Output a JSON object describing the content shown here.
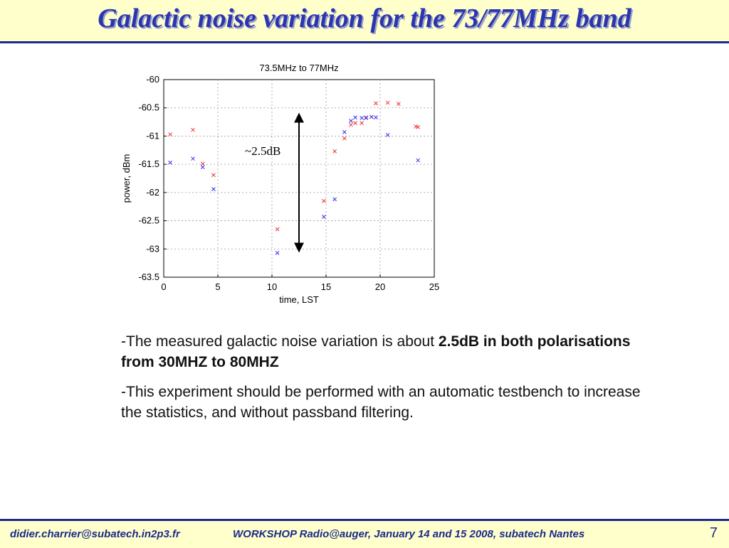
{
  "slide": {
    "title": "Galactic noise variation for the 73/77MHz band"
  },
  "body": {
    "p1_normal": "-The measured galactic noise variation is about ",
    "p1_bold": "2.5dB in both polarisations from 30MHZ to  80MHZ",
    "p2": "-This experiment should be performed with an automatic testbench to increase the statistics, and without passband filtering."
  },
  "footer": {
    "email": "didier.charrier@subatech.in2p3.fr",
    "workshop": "WORKSHOP Radio@auger, January 14 and 15 2008, subatech Nantes",
    "page": "7"
  },
  "colors": {
    "title": "#2b35b0",
    "title_bg": "#ffffcc",
    "rule": "#1a2a8a",
    "series_red": "#ee3333",
    "series_blue": "#3333ee"
  },
  "chart_data": {
    "type": "scatter",
    "title": "73.5MHz to 77MHz",
    "xlabel": "time, LST",
    "ylabel": "power, dBm",
    "xlim": [
      0,
      25
    ],
    "ylim": [
      -63.5,
      -60
    ],
    "xticks": [
      "0",
      "5",
      "10",
      "15",
      "20",
      "25"
    ],
    "yticks": [
      "-60",
      "-60.5",
      "-61",
      "-61.5",
      "-62",
      "-62.5",
      "-63",
      "-63.5"
    ],
    "grid": true,
    "marker": "x",
    "annotation": "~2.5dB",
    "series": [
      {
        "color": "#ee3333",
        "points": [
          [
            0.6,
            -60.97
          ],
          [
            2.7,
            -60.89
          ],
          [
            3.6,
            -61.49
          ],
          [
            4.6,
            -61.69
          ],
          [
            10.5,
            -62.65
          ],
          [
            14.8,
            -62.15
          ],
          [
            15.8,
            -61.27
          ],
          [
            16.7,
            -61.04
          ],
          [
            17.3,
            -60.8
          ],
          [
            17.7,
            -60.77
          ],
          [
            18.3,
            -60.77
          ],
          [
            18.7,
            -60.67
          ],
          [
            19.2,
            -60.66
          ],
          [
            19.6,
            -60.42
          ],
          [
            20.7,
            -60.41
          ],
          [
            21.7,
            -60.43
          ],
          [
            23.3,
            -60.83
          ],
          [
            23.5,
            -60.84
          ]
        ]
      },
      {
        "color": "#3333ee",
        "points": [
          [
            0.6,
            -61.47
          ],
          [
            2.7,
            -61.4
          ],
          [
            3.6,
            -61.55
          ],
          [
            4.6,
            -61.94
          ],
          [
            10.5,
            -63.07
          ],
          [
            14.8,
            -62.43
          ],
          [
            15.8,
            -62.12
          ],
          [
            16.7,
            -60.93
          ],
          [
            17.3,
            -60.73
          ],
          [
            17.7,
            -60.67
          ],
          [
            18.3,
            -60.68
          ],
          [
            18.7,
            -60.68
          ],
          [
            19.2,
            -60.66
          ],
          [
            19.6,
            -60.67
          ],
          [
            20.7,
            -60.98
          ],
          [
            23.5,
            -61.43
          ]
        ]
      }
    ]
  }
}
